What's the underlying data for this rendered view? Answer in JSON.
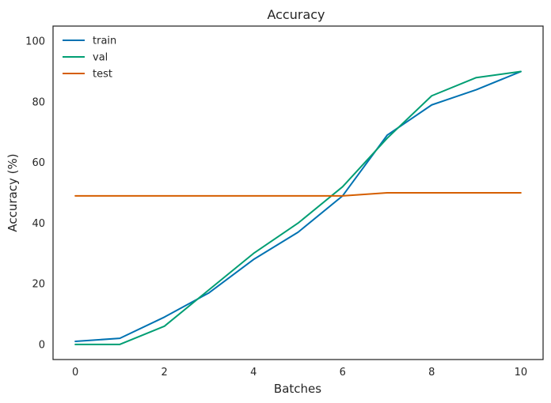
{
  "chart_data": {
    "type": "line",
    "title": "Accuracy",
    "xlabel": "Batches",
    "ylabel": "Accuracy (%)",
    "x": [
      0,
      1,
      2,
      3,
      4,
      5,
      6,
      7,
      8,
      9,
      10
    ],
    "xlim": [
      -0.5,
      10.5
    ],
    "ylim": [
      -5,
      105
    ],
    "xticks": [
      0,
      2,
      4,
      6,
      8,
      10
    ],
    "yticks": [
      0,
      20,
      40,
      60,
      80,
      100
    ],
    "grid": false,
    "legend_position": "top-left",
    "series": [
      {
        "name": "train",
        "color": "#0072b2",
        "values": [
          1,
          2,
          9,
          17,
          28,
          37,
          49,
          69,
          79,
          84,
          90
        ]
      },
      {
        "name": "val",
        "color": "#009e73",
        "values": [
          0,
          0,
          6,
          18,
          30,
          40,
          52,
          68,
          82,
          88,
          90
        ]
      },
      {
        "name": "test",
        "color": "#d55e00",
        "values": [
          49,
          49,
          49,
          49,
          49,
          49,
          49,
          50,
          50,
          50,
          50
        ]
      }
    ]
  }
}
